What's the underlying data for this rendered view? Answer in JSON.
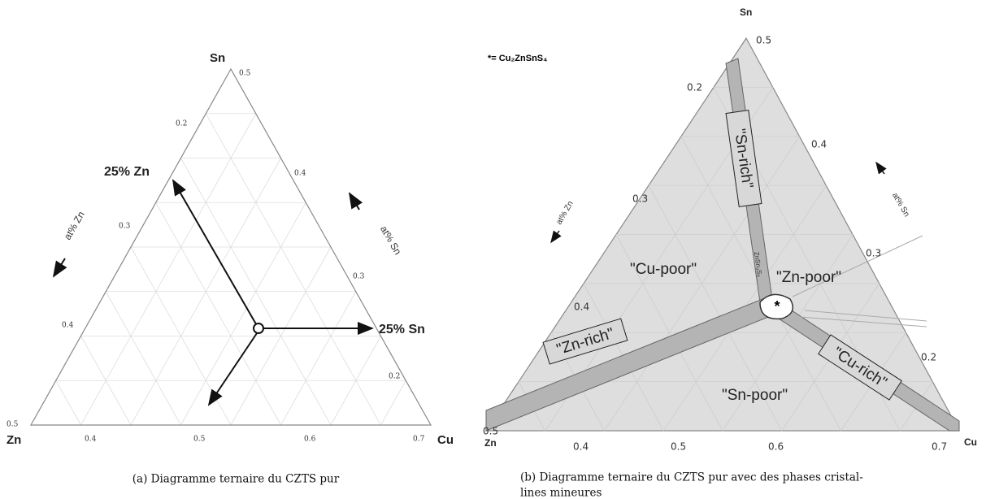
{
  "panel_a": {
    "vertices": {
      "top": "Sn",
      "left": "Zn",
      "right": "Cu"
    },
    "left_ticks": [
      "0.2",
      "0.3",
      "0.4",
      "0.5"
    ],
    "right_ticks": [
      "0.4",
      "0.3",
      "0.2"
    ],
    "bottom_ticks": [
      "0.4",
      "0.5",
      "0.6",
      "0.7"
    ],
    "top_tick": "0.5",
    "axis_labels": {
      "left": "at% Zn",
      "right": "at% Sn"
    },
    "annotations": [
      "25% Zn",
      "25% Sn"
    ],
    "caption": "(a) Diagramme ternaire du CZTS pur"
  },
  "panel_b": {
    "legend": "*= Cu₂ZnSnS₄",
    "vertices": {
      "top": "Sn",
      "left": "Zn",
      "right": "Cu"
    },
    "top_tick": "0.5",
    "left_ticks": [
      "0.2",
      "0.3",
      "0.4",
      "0.5"
    ],
    "right_ticks": [
      "0.4",
      "0.3",
      "0.2"
    ],
    "bottom_ticks": [
      "0.4",
      "0.5",
      "0.6",
      "0.7"
    ],
    "axis_labels": {
      "left": "at% Zn",
      "right": "at% Sn"
    },
    "regions": [
      "\"Cu-poor\"",
      "\"Zn-poor\"",
      "\"Sn-poor\""
    ],
    "bands": [
      "\"Sn-rich\"",
      "\"Zn-rich\"",
      "\"Cu-rich\""
    ],
    "phase": "ZnSn₃S₈",
    "marker": "*",
    "caption": [
      "(b) Diagramme ternaire du CZTS pur avec des phases cristal-",
      "lines mineures"
    ]
  }
}
